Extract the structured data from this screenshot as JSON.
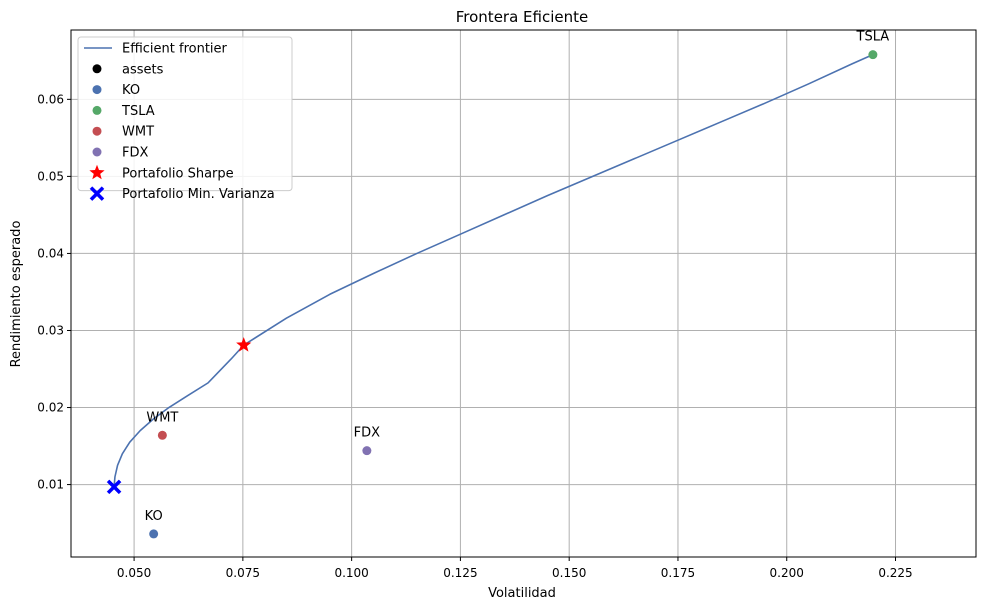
{
  "chart_data": {
    "type": "scatter",
    "title": "Frontera Eficiente",
    "xlabel": "Volatilidad",
    "ylabel": "Rendimiento esperado",
    "xlim": [
      0.0355,
      0.2435
    ],
    "ylim": [
      0.0006,
      0.069
    ],
    "xticks": [
      0.05,
      0.075,
      0.1,
      0.125,
      0.15,
      0.175,
      0.2,
      0.225
    ],
    "xtick_labels": [
      "0.050",
      "0.075",
      "0.100",
      "0.125",
      "0.150",
      "0.175",
      "0.200",
      "0.225"
    ],
    "yticks": [
      0.01,
      0.02,
      0.03,
      0.04,
      0.05,
      0.06
    ],
    "ytick_labels": [
      "0.01",
      "0.02",
      "0.03",
      "0.04",
      "0.05",
      "0.06"
    ],
    "grid": true,
    "legend_position": "top-left",
    "frontier": {
      "name": "Efficient frontier",
      "color": "#4c72b0",
      "x": [
        0.0454,
        0.0456,
        0.0462,
        0.0473,
        0.049,
        0.0514,
        0.0544,
        0.058,
        0.0622,
        0.067,
        0.0723,
        0.0752,
        0.085,
        0.095,
        0.105,
        0.115,
        0.125,
        0.135,
        0.145,
        0.155,
        0.165,
        0.175,
        0.185,
        0.195,
        0.205,
        0.215,
        0.2198
      ],
      "y": [
        0.0097,
        0.011,
        0.0125,
        0.014,
        0.0155,
        0.017,
        0.0185,
        0.02,
        0.0215,
        0.0232,
        0.0263,
        0.0281,
        0.0316,
        0.0347,
        0.0374,
        0.04,
        0.0425,
        0.045,
        0.0475,
        0.0499,
        0.0523,
        0.0547,
        0.0571,
        0.0595,
        0.062,
        0.0646,
        0.0658
      ]
    },
    "assets_legend": {
      "name": "assets",
      "color": "#000000"
    },
    "assets": [
      {
        "name": "KO",
        "x": 0.0545,
        "y": 0.0036,
        "color": "#4c72b0"
      },
      {
        "name": "TSLA",
        "x": 0.2198,
        "y": 0.0658,
        "color": "#55a868"
      },
      {
        "name": "WMT",
        "x": 0.0565,
        "y": 0.0164,
        "color": "#c44e52"
      },
      {
        "name": "FDX",
        "x": 0.1035,
        "y": 0.0144,
        "color": "#8172b2"
      }
    ],
    "special_portfolios": [
      {
        "name": "Portafolio Sharpe",
        "x": 0.0752,
        "y": 0.0281,
        "marker": "star",
        "color": "#ff0000"
      },
      {
        "name": "Portafolio Min. Varianza",
        "x": 0.0454,
        "y": 0.0097,
        "marker": "x",
        "color": "#0000ff"
      }
    ]
  }
}
